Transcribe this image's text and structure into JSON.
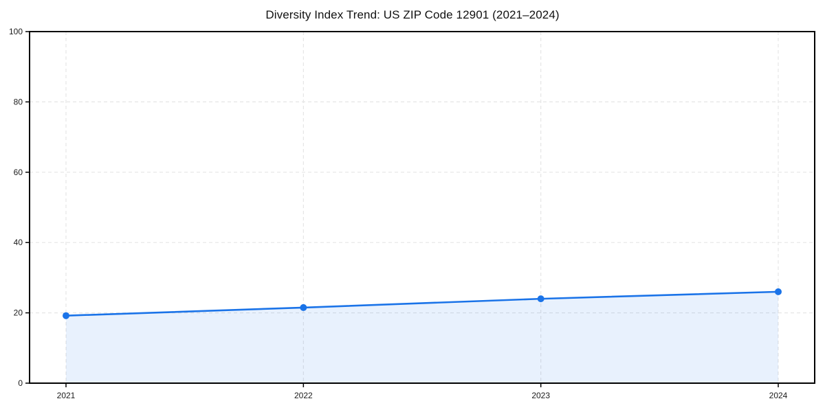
{
  "header": {
    "title": "Diversity Index Trend: US ZIP Code 12901 (2021–2024)"
  },
  "chart_data": {
    "type": "line",
    "title": "Diversity Index Trend: US ZIP Code 12901 (2021–2024)",
    "x": [
      2021,
      2022,
      2023,
      2024
    ],
    "xtick_labels": [
      "2021",
      "2022",
      "2023",
      "2024"
    ],
    "series": [
      {
        "name": "Diversity Index",
        "values": [
          19.2,
          21.5,
          24.0,
          26.0
        ]
      }
    ],
    "xlabel": "",
    "ylabel": "",
    "ylim": [
      0,
      100
    ],
    "yticks": [
      0,
      20,
      40,
      60,
      80,
      100
    ],
    "grid": true,
    "grid_style": "dashed",
    "legend": false,
    "area_fill": true,
    "markers": true,
    "colors": {
      "line": "#1a73e8",
      "marker": "#1a73e8",
      "fill": "rgba(26,115,232,0.10)",
      "grid": "#e5e5e5",
      "axis": "#000000",
      "tick_label": "#1a1a1a",
      "background": "#ffffff"
    }
  }
}
